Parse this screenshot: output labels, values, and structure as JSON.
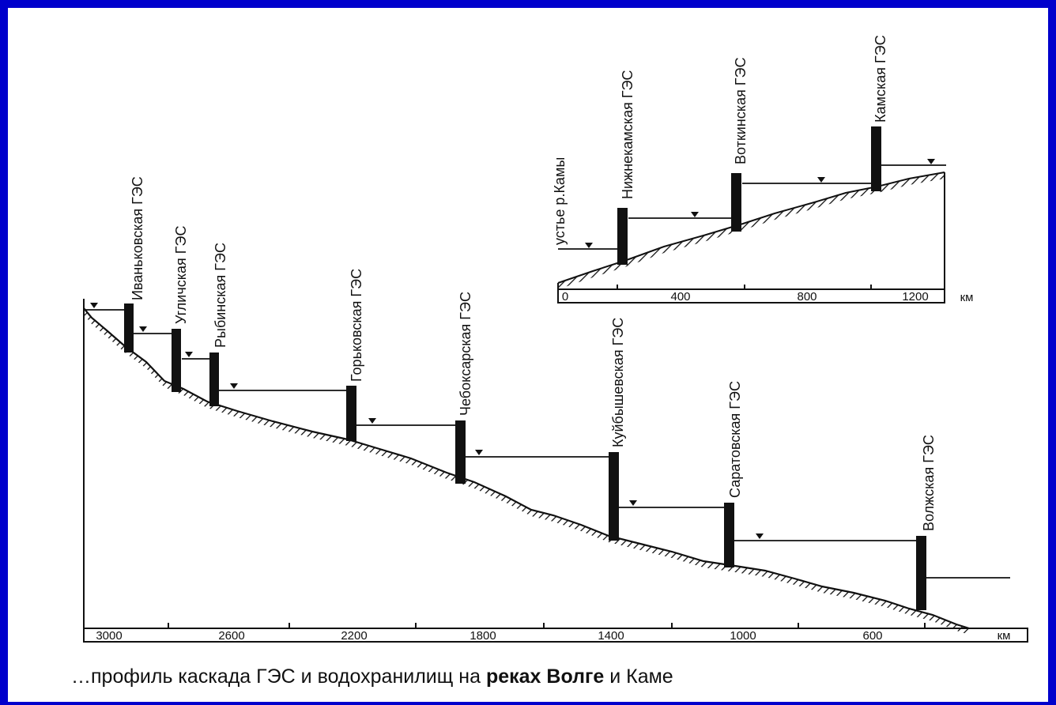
{
  "volga": {
    "dams": [
      {
        "name": "Иваньковская ГЭС",
        "km": 2920
      },
      {
        "name": "Угличская ГЭС",
        "km": 2780
      },
      {
        "name": "Рыбинская ГЭС",
        "km": 2650
      },
      {
        "name": "Горьковская ГЭС",
        "km": 2180
      },
      {
        "name": "Чебоксарская ГЭС",
        "km": 1850
      },
      {
        "name": "Куйбышевская ГЭС",
        "km": 1380
      },
      {
        "name": "Саратовская ГЭС",
        "km": 1030
      },
      {
        "name": "Волжская ГЭС",
        "km": 550
      }
    ],
    "ticks": [
      "3000",
      "2600",
      "2200",
      "1800",
      "1400",
      "1000",
      "600"
    ],
    "unit": "км"
  },
  "kama": {
    "mouth_label": "устье р.Камы",
    "dams": [
      {
        "name": "Нижнекамская ГЭС",
        "km": 200
      },
      {
        "name": "Воткинская ГЭС",
        "km": 580
      },
      {
        "name": "Камская ГЭС",
        "km": 1050
      }
    ],
    "ticks": [
      "0",
      "400",
      "800",
      "1200"
    ],
    "unit": "км"
  },
  "caption": {
    "part1": "…профиль каскада ГЭС и водохранилищ на ",
    "bold": "реках Волге",
    "part2": " и Каме"
  }
}
